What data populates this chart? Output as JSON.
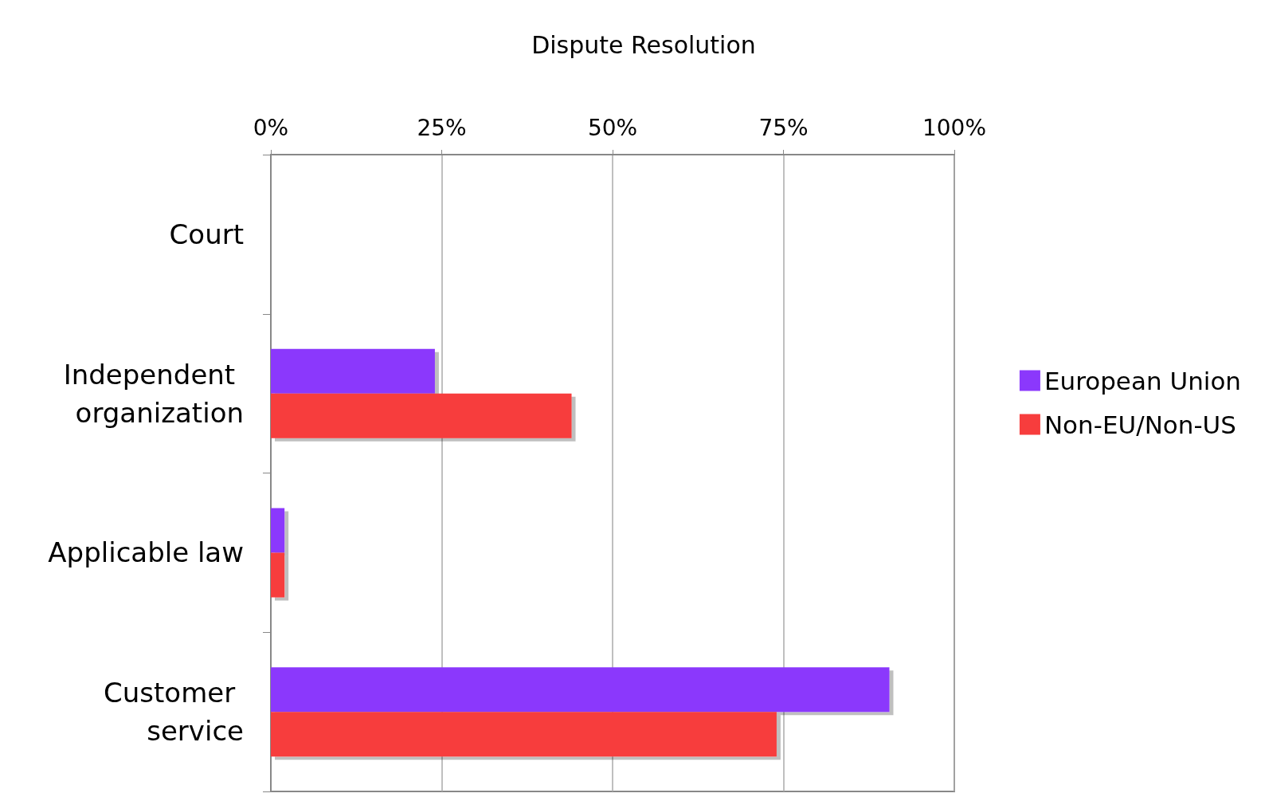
{
  "chart_data": {
    "type": "bar",
    "orientation": "horizontal",
    "title": "Dispute Resolution",
    "categories": [
      "Court",
      "Independent organization",
      "Applicable law",
      "Customer service"
    ],
    "series": [
      {
        "name": "European Union",
        "color": "#8b38fc",
        "values": [
          0,
          24,
          2,
          90.5
        ]
      },
      {
        "name": "Non-EU/Non-US",
        "color": "#f73d3d",
        "values": [
          0,
          44,
          2,
          74
        ]
      }
    ],
    "xlim": [
      0,
      100
    ],
    "xticks": [
      {
        "value": 0,
        "label": "0%"
      },
      {
        "value": 25,
        "label": "25%"
      },
      {
        "value": 50,
        "label": "50%"
      },
      {
        "value": 75,
        "label": "75%"
      },
      {
        "value": 100,
        "label": "100%"
      }
    ],
    "grid": "x",
    "legend": "right"
  }
}
